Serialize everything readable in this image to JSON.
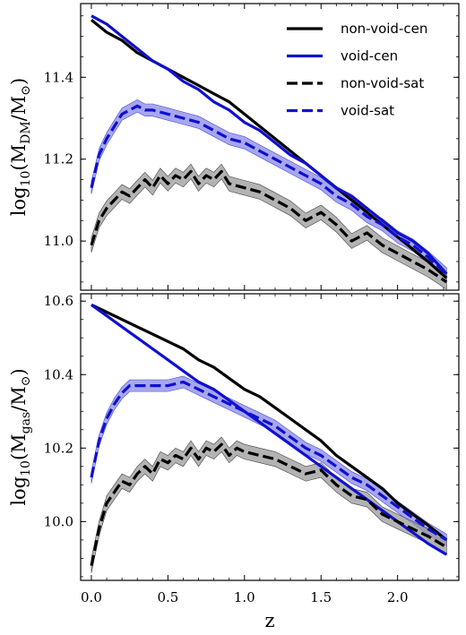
{
  "chart_data": [
    {
      "type": "line",
      "panel": "top",
      "ylabel_main": "log",
      "ylabel_sub": "10",
      "ylabel_paren": "(M",
      "ylabel_sub2": "DM",
      "ylabel_mid": "/M",
      "ylabel_sun": "⊙",
      "ylabel_close": ")",
      "xlim": [
        -0.07,
        2.4
      ],
      "ylim": [
        10.88,
        11.58
      ],
      "xticks": [
        0.0,
        0.5,
        1.0,
        1.5,
        2.0
      ],
      "yticks": [
        11.0,
        11.2,
        11.4
      ],
      "ytick_labels": [
        "11.0",
        "11.2",
        "11.4"
      ],
      "legend": {
        "placement": "top-right",
        "entries": [
          {
            "label": "non-void-cen",
            "color": "#000000",
            "dash": false
          },
          {
            "label": "void-cen",
            "color": "#1010d0",
            "dash": false
          },
          {
            "label": "non-void-sat",
            "color": "#000000",
            "dash": true
          },
          {
            "label": "void-sat",
            "color": "#1010d0",
            "dash": true
          }
        ]
      },
      "series": [
        {
          "key": "non-void-cen",
          "color": "#000000",
          "dash": false,
          "band": 0.0,
          "x": [
            0.0,
            0.1,
            0.2,
            0.3,
            0.4,
            0.5,
            0.6,
            0.7,
            0.8,
            0.9,
            1.0,
            1.1,
            1.2,
            1.3,
            1.4,
            1.5,
            1.6,
            1.7,
            1.8,
            1.9,
            2.0,
            2.1,
            2.2,
            2.32
          ],
          "y": [
            11.54,
            11.51,
            11.49,
            11.46,
            11.44,
            11.42,
            11.4,
            11.38,
            11.36,
            11.34,
            11.31,
            11.28,
            11.25,
            11.22,
            11.19,
            11.16,
            11.13,
            11.1,
            11.07,
            11.04,
            11.01,
            10.98,
            10.95,
            10.91
          ]
        },
        {
          "key": "void-cen",
          "color": "#1010d0",
          "dash": false,
          "band": 0.0,
          "x": [
            0.0,
            0.1,
            0.2,
            0.3,
            0.4,
            0.5,
            0.6,
            0.7,
            0.8,
            0.9,
            1.0,
            1.1,
            1.2,
            1.3,
            1.4,
            1.5,
            1.6,
            1.7,
            1.8,
            1.9,
            2.0,
            2.1,
            2.2,
            2.32
          ],
          "y": [
            11.55,
            11.53,
            11.5,
            11.47,
            11.44,
            11.42,
            11.39,
            11.37,
            11.34,
            11.32,
            11.29,
            11.27,
            11.24,
            11.21,
            11.19,
            11.16,
            11.13,
            11.11,
            11.08,
            11.05,
            11.02,
            11.0,
            10.97,
            10.92
          ]
        },
        {
          "key": "void-sat",
          "color": "#1010d0",
          "dash": true,
          "band": 0.015,
          "x": [
            0.0,
            0.05,
            0.1,
            0.15,
            0.2,
            0.25,
            0.3,
            0.35,
            0.4,
            0.5,
            0.6,
            0.7,
            0.8,
            0.9,
            1.0,
            1.1,
            1.2,
            1.3,
            1.4,
            1.5,
            1.6,
            1.7,
            1.8,
            1.9,
            2.0,
            2.1,
            2.2,
            2.32
          ],
          "y": [
            11.13,
            11.21,
            11.25,
            11.28,
            11.31,
            11.32,
            11.33,
            11.32,
            11.32,
            11.31,
            11.3,
            11.29,
            11.27,
            11.25,
            11.24,
            11.22,
            11.2,
            11.18,
            11.16,
            11.14,
            11.11,
            11.09,
            11.06,
            11.04,
            11.01,
            10.99,
            10.96,
            10.92
          ]
        },
        {
          "key": "non-void-sat",
          "color": "#000000",
          "dash": true,
          "band": 0.018,
          "x": [
            0.0,
            0.05,
            0.1,
            0.15,
            0.2,
            0.25,
            0.3,
            0.35,
            0.4,
            0.45,
            0.5,
            0.55,
            0.6,
            0.65,
            0.7,
            0.75,
            0.8,
            0.85,
            0.9,
            1.0,
            1.1,
            1.2,
            1.3,
            1.4,
            1.5,
            1.6,
            1.7,
            1.8,
            1.9,
            2.0,
            2.1,
            2.2,
            2.32
          ],
          "y": [
            10.99,
            11.05,
            11.08,
            11.1,
            11.12,
            11.11,
            11.13,
            11.15,
            11.13,
            11.16,
            11.14,
            11.16,
            11.15,
            11.17,
            11.14,
            11.16,
            11.15,
            11.17,
            11.14,
            11.13,
            11.12,
            11.1,
            11.08,
            11.05,
            11.07,
            11.04,
            11.0,
            11.02,
            10.99,
            10.97,
            10.95,
            10.93,
            10.9
          ]
        }
      ]
    },
    {
      "type": "line",
      "panel": "bottom",
      "ylabel_main": "log",
      "ylabel_sub": "10",
      "ylabel_paren": "(M",
      "ylabel_sub2": "gas",
      "ylabel_mid": "/M",
      "ylabel_sun": "⊙",
      "ylabel_close": ")",
      "xlabel": "z",
      "xlim": [
        -0.07,
        2.4
      ],
      "ylim": [
        9.84,
        10.62
      ],
      "xticks": [
        0.0,
        0.5,
        1.0,
        1.5,
        2.0
      ],
      "xtick_labels": [
        "0.0",
        "0.5",
        "1.0",
        "1.5",
        "2.0"
      ],
      "yticks": [
        10.0,
        10.2,
        10.4,
        10.6
      ],
      "ytick_labels": [
        "10.0",
        "10.2",
        "10.4",
        "10.6"
      ],
      "series": [
        {
          "key": "non-void-cen",
          "color": "#000000",
          "dash": false,
          "band": 0.0,
          "x": [
            0.0,
            0.1,
            0.2,
            0.3,
            0.4,
            0.5,
            0.6,
            0.7,
            0.8,
            0.9,
            1.0,
            1.1,
            1.2,
            1.3,
            1.4,
            1.5,
            1.6,
            1.7,
            1.8,
            1.9,
            2.0,
            2.1,
            2.2,
            2.32
          ],
          "y": [
            10.59,
            10.57,
            10.55,
            10.53,
            10.51,
            10.49,
            10.47,
            10.44,
            10.42,
            10.39,
            10.36,
            10.34,
            10.31,
            10.28,
            10.25,
            10.22,
            10.18,
            10.15,
            10.12,
            10.09,
            10.05,
            10.02,
            9.99,
            9.95
          ]
        },
        {
          "key": "void-cen",
          "color": "#1010d0",
          "dash": false,
          "band": 0.0,
          "x": [
            0.0,
            0.1,
            0.2,
            0.3,
            0.4,
            0.5,
            0.6,
            0.7,
            0.8,
            0.9,
            1.0,
            1.1,
            1.2,
            1.3,
            1.4,
            1.5,
            1.6,
            1.7,
            1.8,
            1.9,
            2.0,
            2.1,
            2.2,
            2.32
          ],
          "y": [
            10.59,
            10.56,
            10.53,
            10.5,
            10.47,
            10.44,
            10.41,
            10.38,
            10.36,
            10.33,
            10.3,
            10.27,
            10.24,
            10.21,
            10.18,
            10.15,
            10.12,
            10.09,
            10.06,
            10.03,
            10.0,
            9.97,
            9.94,
            9.91
          ]
        },
        {
          "key": "void-sat",
          "color": "#1010d0",
          "dash": true,
          "band": 0.016,
          "x": [
            0.0,
            0.05,
            0.1,
            0.15,
            0.2,
            0.25,
            0.3,
            0.35,
            0.4,
            0.5,
            0.6,
            0.65,
            0.7,
            0.8,
            0.9,
            1.0,
            1.1,
            1.2,
            1.3,
            1.4,
            1.5,
            1.6,
            1.7,
            1.8,
            1.9,
            2.0,
            2.1,
            2.2,
            2.32
          ],
          "y": [
            10.12,
            10.22,
            10.28,
            10.32,
            10.35,
            10.37,
            10.37,
            10.37,
            10.37,
            10.37,
            10.38,
            10.37,
            10.36,
            10.34,
            10.32,
            10.3,
            10.28,
            10.26,
            10.23,
            10.2,
            10.18,
            10.15,
            10.12,
            10.1,
            10.07,
            10.04,
            10.01,
            9.98,
            9.95
          ]
        },
        {
          "key": "non-void-sat",
          "color": "#000000",
          "dash": true,
          "band": 0.02,
          "x": [
            0.0,
            0.05,
            0.1,
            0.15,
            0.2,
            0.25,
            0.3,
            0.35,
            0.4,
            0.45,
            0.5,
            0.55,
            0.6,
            0.65,
            0.7,
            0.75,
            0.8,
            0.85,
            0.9,
            0.95,
            1.0,
            1.1,
            1.2,
            1.3,
            1.4,
            1.5,
            1.6,
            1.7,
            1.8,
            1.9,
            2.0,
            2.1,
            2.2,
            2.32
          ],
          "y": [
            9.88,
            9.98,
            10.05,
            10.08,
            10.11,
            10.1,
            10.13,
            10.15,
            10.13,
            10.17,
            10.16,
            10.18,
            10.17,
            10.2,
            10.17,
            10.2,
            10.19,
            10.21,
            10.18,
            10.2,
            10.19,
            10.18,
            10.17,
            10.15,
            10.13,
            10.14,
            10.1,
            10.07,
            10.06,
            10.02,
            10.0,
            9.98,
            9.96,
            9.93
          ]
        }
      ]
    }
  ]
}
